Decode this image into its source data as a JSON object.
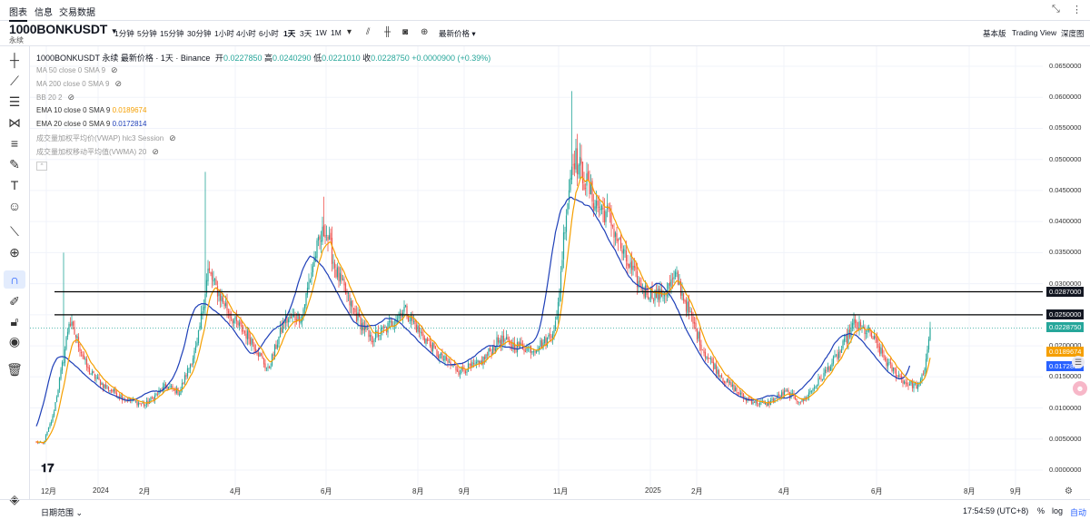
{
  "nav": {
    "tabs": [
      "图表",
      "信息",
      "交易数据"
    ]
  },
  "symbol": {
    "name": "1000BONKUSDT",
    "type": "永续",
    "header_title": "1000BONKUSDT 永续 最新价格 · 1天 · Binance",
    "ohlc": {
      "open_label": "开",
      "open": "0.0227850",
      "high_label": "高",
      "high": "0.0240290",
      "low_label": "低",
      "low": "0.0221010",
      "close_label": "收",
      "close": "0.0228750",
      "change": "+0.0000900 (+0.39%)"
    }
  },
  "toolbar": {
    "timeframes": [
      "1分钟",
      "5分钟",
      "15分钟",
      "30分钟",
      "1小时",
      "4小时",
      "6小时",
      "1天",
      "3天",
      "1W",
      "1M"
    ],
    "active_timeframe": "1天",
    "price_type": "最新价格",
    "views": [
      "基本版",
      "Trading View",
      "深度图"
    ]
  },
  "indicators": [
    {
      "label": "MA 50 close 0 SMA 9",
      "value": "",
      "hidden": true,
      "color": "#999999"
    },
    {
      "label": "MA 200 close 0 SMA 9",
      "value": "",
      "hidden": true,
      "color": "#999999"
    },
    {
      "label": "BB 20 2",
      "value": "",
      "hidden": true,
      "color": "#999999"
    },
    {
      "label": "EMA 10 close 0 SMA 9",
      "value": "0.0189674",
      "hidden": false,
      "color": "#f59f00"
    },
    {
      "label": "EMA 20 close 0 SMA 9",
      "value": "0.0172814",
      "hidden": false,
      "color": "#1e3fb8"
    },
    {
      "label": "成交量加权平均价(VWAP) hlc3 Session",
      "value": "",
      "hidden": true,
      "color": "#999999"
    },
    {
      "label": "成交量加权移动平均值(VWMA) 20",
      "value": "",
      "hidden": true,
      "color": "#999999"
    }
  ],
  "price_axis": {
    "ticks": [
      "0.0650000",
      "0.0600000",
      "0.0550000",
      "0.0500000",
      "0.0450000",
      "0.0400000",
      "0.0350000",
      "0.0300000",
      "0.0250000",
      "0.0200000",
      "0.0150000",
      "0.0100000",
      "0.0050000",
      "0.0000000"
    ],
    "badges": [
      {
        "text": "0.0287000",
        "color": "#131722"
      },
      {
        "text": "0.0250000",
        "color": "#131722"
      },
      {
        "text": "0.0228750",
        "color": "#26a69a"
      },
      {
        "text": "0.0189674",
        "color": "#f59f00"
      },
      {
        "text": "0.0172814",
        "color": "#2962ff"
      }
    ]
  },
  "time_axis": {
    "ticks": [
      "12月",
      "2024",
      "2月",
      "4月",
      "6月",
      "8月",
      "9月",
      "11月",
      "2025",
      "2月",
      "4月",
      "6月",
      "8月",
      "9月"
    ]
  },
  "horizontal_lines": [
    0.0287,
    0.025
  ],
  "chart_data": {
    "type": "candlestick",
    "y_range": [
      0,
      0.0655
    ],
    "colors": {
      "up": "#26a69a",
      "down": "#ef5350",
      "ema10": "#f59f00",
      "ema20": "#1e3fb8"
    },
    "anchors": [
      {
        "t": 0,
        "p": 0.0045
      },
      {
        "t": 5,
        "p": 0.0042
      },
      {
        "t": 12,
        "p": 0.0085
      },
      {
        "t": 20,
        "p": 0.018
      },
      {
        "t": 24,
        "p": 0.024
      },
      {
        "t": 30,
        "p": 0.021
      },
      {
        "t": 38,
        "p": 0.016
      },
      {
        "t": 50,
        "p": 0.0135
      },
      {
        "t": 65,
        "p": 0.0115
      },
      {
        "t": 80,
        "p": 0.0105
      },
      {
        "t": 95,
        "p": 0.0135
      },
      {
        "t": 105,
        "p": 0.0125
      },
      {
        "t": 118,
        "p": 0.02
      },
      {
        "t": 126,
        "p": 0.032
      },
      {
        "t": 135,
        "p": 0.028
      },
      {
        "t": 145,
        "p": 0.024
      },
      {
        "t": 158,
        "p": 0.021
      },
      {
        "t": 170,
        "p": 0.016
      },
      {
        "t": 182,
        "p": 0.024
      },
      {
        "t": 195,
        "p": 0.025
      },
      {
        "t": 205,
        "p": 0.035
      },
      {
        "t": 212,
        "p": 0.039
      },
      {
        "t": 220,
        "p": 0.032
      },
      {
        "t": 232,
        "p": 0.026
      },
      {
        "t": 245,
        "p": 0.021
      },
      {
        "t": 258,
        "p": 0.023
      },
      {
        "t": 270,
        "p": 0.026
      },
      {
        "t": 282,
        "p": 0.022
      },
      {
        "t": 295,
        "p": 0.0185
      },
      {
        "t": 310,
        "p": 0.016
      },
      {
        "t": 325,
        "p": 0.017
      },
      {
        "t": 340,
        "p": 0.021
      },
      {
        "t": 352,
        "p": 0.02
      },
      {
        "t": 365,
        "p": 0.0195
      },
      {
        "t": 375,
        "p": 0.021
      },
      {
        "t": 382,
        "p": 0.024
      },
      {
        "t": 388,
        "p": 0.04
      },
      {
        "t": 394,
        "p": 0.051
      },
      {
        "t": 400,
        "p": 0.048
      },
      {
        "t": 410,
        "p": 0.043
      },
      {
        "t": 420,
        "p": 0.041
      },
      {
        "t": 432,
        "p": 0.034
      },
      {
        "t": 445,
        "p": 0.029
      },
      {
        "t": 458,
        "p": 0.028
      },
      {
        "t": 470,
        "p": 0.031
      },
      {
        "t": 478,
        "p": 0.026
      },
      {
        "t": 490,
        "p": 0.019
      },
      {
        "t": 505,
        "p": 0.0145
      },
      {
        "t": 520,
        "p": 0.0115
      },
      {
        "t": 535,
        "p": 0.0105
      },
      {
        "t": 550,
        "p": 0.0125
      },
      {
        "t": 562,
        "p": 0.011
      },
      {
        "t": 575,
        "p": 0.0145
      },
      {
        "t": 590,
        "p": 0.019
      },
      {
        "t": 600,
        "p": 0.0235
      },
      {
        "t": 612,
        "p": 0.022
      },
      {
        "t": 625,
        "p": 0.017
      },
      {
        "t": 638,
        "p": 0.014
      },
      {
        "t": 648,
        "p": 0.0135
      },
      {
        "t": 652,
        "p": 0.0165
      },
      {
        "t": 656,
        "p": 0.0228
      }
    ]
  }
}
